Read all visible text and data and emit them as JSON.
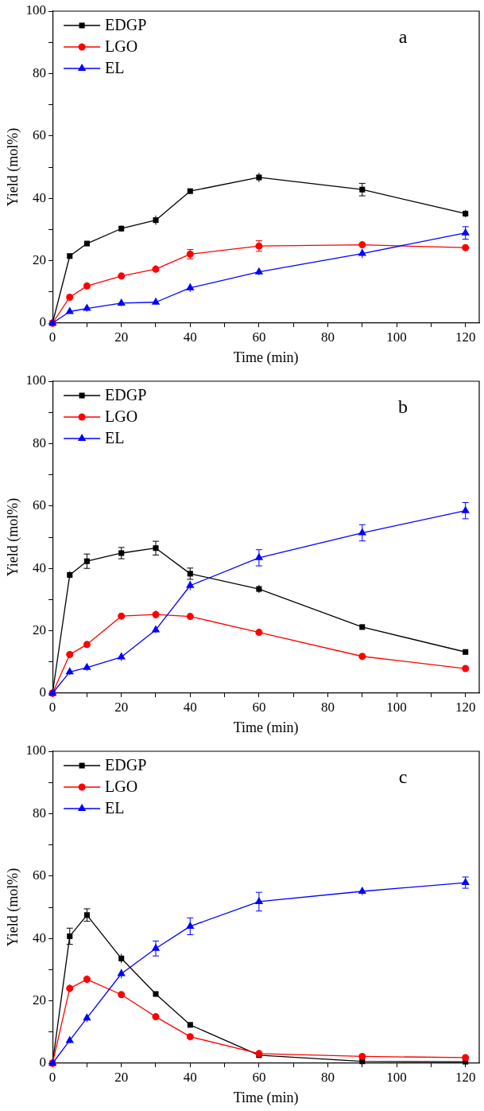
{
  "chart_data": [
    {
      "type": "line",
      "xlabel": "Time (min)",
      "ylabel": "Yield (mol%)",
      "annotations": [
        "a"
      ],
      "legend": "top left",
      "grid": false,
      "line_style": "solid",
      "x": [
        0,
        5,
        10,
        20,
        30,
        40,
        60,
        90,
        120
      ],
      "xlim": [
        0,
        124
      ],
      "ylim": [
        0,
        100
      ],
      "xticks": [
        0,
        {
          "value": 10,
          "label": null
        },
        20,
        {
          "value": 30,
          "label": null
        },
        40,
        {
          "value": 50,
          "label": null
        },
        60,
        {
          "value": 70,
          "label": null
        },
        80,
        {
          "value": 90,
          "label": null
        },
        100,
        {
          "value": 110,
          "label": null
        },
        120
      ],
      "yticks": [
        0,
        {
          "value": 10,
          "label": null
        },
        20,
        {
          "value": 30,
          "label": null
        },
        40,
        {
          "value": 50,
          "label": null
        },
        60,
        {
          "value": 70,
          "label": null
        },
        80,
        {
          "value": 90,
          "label": null
        },
        100
      ],
      "series": [
        {
          "name": "EDGP",
          "color": "#000000",
          "marker": "square",
          "values": [
            0,
            21.5,
            25.5,
            30.3,
            33,
            42.3,
            46.7,
            42.8,
            35.1
          ],
          "errors": [
            null,
            0.5,
            0.5,
            1,
            1.5,
            0.5,
            1.5,
            2,
            1.2
          ]
        },
        {
          "name": "LGO",
          "color": "#ff0000",
          "marker": "circle",
          "values": [
            0,
            8.3,
            11.9,
            15.1,
            17.3,
            22.1,
            24.7,
            25.1,
            24.2
          ],
          "errors": [
            null,
            0.5,
            0.5,
            0.8,
            1.3,
            1.5,
            1.7,
            0.5,
            0.5
          ]
        },
        {
          "name": "EL",
          "color": "#0000ff",
          "marker": "triangle",
          "values": [
            0,
            3.7,
            4.7,
            6.4,
            6.7,
            11.3,
            16.4,
            22.3,
            28.9
          ],
          "errors": [
            null,
            0.5,
            1,
            1,
            0.8,
            1.3,
            1,
            1.5,
            2
          ]
        }
      ]
    },
    {
      "type": "line",
      "xlabel": "Time (min)",
      "ylabel": "Yield (mol%)",
      "annotations": [
        "b"
      ],
      "legend": "top left",
      "grid": false,
      "line_style": "solid",
      "x": [
        0,
        5,
        10,
        20,
        30,
        40,
        60,
        90,
        120
      ],
      "xlim": [
        0,
        124
      ],
      "ylim": [
        0,
        100
      ],
      "xticks": [
        0,
        {
          "value": 10,
          "label": null
        },
        20,
        {
          "value": 30,
          "label": null
        },
        40,
        {
          "value": 50,
          "label": null
        },
        60,
        {
          "value": 70,
          "label": null
        },
        80,
        {
          "value": 90,
          "label": null
        },
        100,
        {
          "value": 110,
          "label": null
        },
        120
      ],
      "yticks": [
        0,
        {
          "value": 10,
          "label": null
        },
        20,
        {
          "value": 30,
          "label": null
        },
        40,
        {
          "value": 50,
          "label": null
        },
        60,
        {
          "value": 70,
          "label": null
        },
        80,
        {
          "value": 90,
          "label": null
        },
        100
      ],
      "series": [
        {
          "name": "EDGP",
          "color": "#000000",
          "marker": "square",
          "values": [
            0,
            37.9,
            42.3,
            44.9,
            46.5,
            38.3,
            33.4,
            21.2,
            13.2
          ],
          "errors": [
            null,
            1.2,
            2.3,
            1.8,
            2.2,
            1.8,
            1.3,
            0.5,
            0.5
          ]
        },
        {
          "name": "LGO",
          "color": "#ff0000",
          "marker": "circle",
          "values": [
            0,
            12.4,
            15.6,
            24.7,
            25.2,
            24.6,
            19.5,
            11.8,
            7.9
          ],
          "errors": [
            null,
            0.5,
            0.5,
            1,
            1.3,
            0.5,
            0.5,
            0.5,
            0.5
          ]
        },
        {
          "name": "EL",
          "color": "#0000ff",
          "marker": "triangle",
          "values": [
            0,
            6.8,
            8.2,
            11.6,
            20.3,
            34.5,
            43.4,
            51.4,
            58.5
          ],
          "errors": [
            null,
            1,
            1,
            1.3,
            1,
            1.5,
            2.6,
            2.6,
            2.6
          ]
        }
      ]
    },
    {
      "type": "line",
      "xlabel": "Time (min)",
      "ylabel": "Yield (mol%)",
      "annotations": [
        "c"
      ],
      "legend": "top left",
      "grid": false,
      "line_style": "solid",
      "x": [
        0,
        5,
        10,
        20,
        30,
        40,
        60,
        90,
        120
      ],
      "xlim": [
        0,
        124
      ],
      "ylim": [
        0,
        100
      ],
      "xticks": [
        0,
        {
          "value": 10,
          "label": null
        },
        20,
        {
          "value": 30,
          "label": null
        },
        40,
        {
          "value": 50,
          "label": null
        },
        60,
        {
          "value": 70,
          "label": null
        },
        80,
        {
          "value": 90,
          "label": null
        },
        100,
        {
          "value": 110,
          "label": null
        },
        120
      ],
      "yticks": [
        0,
        {
          "value": 10,
          "label": null
        },
        20,
        {
          "value": 30,
          "label": null
        },
        40,
        {
          "value": 50,
          "label": null
        },
        60,
        {
          "value": 70,
          "label": null
        },
        80,
        {
          "value": 90,
          "label": null
        },
        100
      ],
      "series": [
        {
          "name": "EDGP",
          "color": "#000000",
          "marker": "square",
          "values": [
            0,
            40.7,
            47.5,
            33.6,
            22.2,
            12.3,
            2.6,
            0.6,
            0.5
          ],
          "errors": [
            null,
            2.6,
            2,
            1.5,
            0.5,
            0.5,
            0.5,
            null,
            null
          ]
        },
        {
          "name": "LGO",
          "color": "#ff0000",
          "marker": "circle",
          "values": [
            0,
            24,
            26.9,
            22,
            14.9,
            8.5,
            3.1,
            2.2,
            1.8
          ],
          "errors": [
            null,
            1.3,
            1.3,
            0.5,
            0.5,
            0.5,
            0.5,
            0.3,
            0.3
          ]
        },
        {
          "name": "EL",
          "color": "#0000ff",
          "marker": "triangle",
          "values": [
            0,
            7.3,
            14.5,
            28.7,
            36.8,
            43.9,
            51.8,
            55.1,
            57.9
          ],
          "errors": [
            null,
            0.8,
            1.3,
            1.5,
            2.4,
            2.7,
            3,
            1.2,
            1.8
          ]
        }
      ]
    }
  ]
}
